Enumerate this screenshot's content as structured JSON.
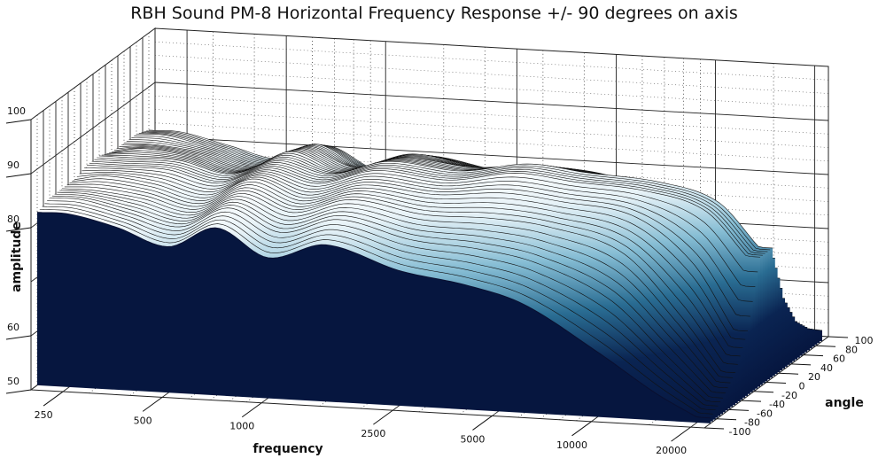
{
  "chart_data": {
    "type": "waterfall-3d-surface",
    "title": "RBH Sound PM-8 Horizontal Frequency Response +/- 90 degrees on axis",
    "xlabel": "frequency",
    "ylabel": "angle",
    "zlabel": "amplitude",
    "x_scale": "log",
    "xlim": [
      200,
      22000
    ],
    "ylim": [
      -100,
      100
    ],
    "zlim": [
      50,
      100
    ],
    "x_ticks": [
      "250",
      "500",
      "1000",
      "2500",
      "5000",
      "10000",
      "20000"
    ],
    "x_tick_values": [
      250,
      500,
      1000,
      2500,
      5000,
      10000,
      20000
    ],
    "y_ticks": [
      "-100",
      "-80",
      "-60",
      "-40",
      "-20",
      "0",
      "20",
      "40",
      "60",
      "80",
      "100"
    ],
    "z_ticks": [
      "50",
      "60",
      "80",
      "90",
      "100"
    ],
    "z_tick_values": [
      50,
      60,
      80,
      90,
      100
    ],
    "frequencies": [
      200,
      250,
      350,
      500,
      700,
      1000,
      1500,
      2500,
      4000,
      6000,
      10000,
      15000,
      20000
    ],
    "series": [
      {
        "angle": -90,
        "values": [
          82,
          82,
          80,
          77,
          81,
          76,
          79,
          75,
          73,
          70,
          62,
          55,
          51
        ]
      },
      {
        "angle": -70,
        "values": [
          83,
          83,
          81,
          79,
          83,
          79,
          82,
          79,
          78,
          76,
          70,
          60,
          53
        ]
      },
      {
        "angle": -50,
        "values": [
          83,
          83,
          82,
          80,
          84,
          81,
          84,
          82,
          82,
          81,
          77,
          66,
          56
        ]
      },
      {
        "angle": -30,
        "values": [
          83,
          84,
          83,
          81,
          85,
          82,
          85,
          84,
          85,
          84,
          82,
          74,
          62
        ]
      },
      {
        "angle": -10,
        "values": [
          84,
          84,
          84,
          82,
          85,
          83,
          86,
          85,
          87,
          86,
          85,
          82,
          74
        ]
      },
      {
        "angle": 10,
        "values": [
          84,
          84,
          84,
          82,
          85,
          83,
          86,
          85,
          87,
          86,
          85,
          82,
          74
        ]
      },
      {
        "angle": 30,
        "values": [
          83,
          84,
          83,
          81,
          85,
          82,
          85,
          84,
          85,
          84,
          82,
          75,
          63
        ]
      },
      {
        "angle": 50,
        "values": [
          83,
          83,
          82,
          80,
          84,
          81,
          84,
          82,
          83,
          82,
          78,
          68,
          57
        ]
      },
      {
        "angle": 70,
        "values": [
          83,
          83,
          81,
          79,
          83,
          79,
          82,
          80,
          79,
          77,
          72,
          62,
          54
        ]
      },
      {
        "angle": 90,
        "values": [
          82,
          82,
          80,
          78,
          81,
          77,
          80,
          76,
          74,
          71,
          64,
          56,
          52
        ]
      }
    ],
    "colors": {
      "low": "#06163f",
      "mid": "#1d5d85",
      "light": "#7fb8d0",
      "high": "#ffffff"
    }
  }
}
